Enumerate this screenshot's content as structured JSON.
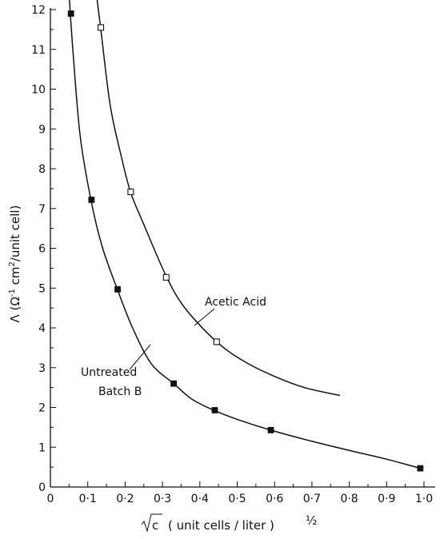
{
  "chart_data": {
    "type": "scatter",
    "xlabel": "√c (unit cells / liter)^1/2",
    "xlabel_radical": "c",
    "xlabel_text": "( unit cells / liter )",
    "xlabel_exponent": "½",
    "ylabel": "Λ (Ω⁻¹ cm²/unit cell)",
    "ylabel_text_a": "Λ (Ω",
    "ylabel_sup1": "-1",
    "ylabel_text_b": " cm",
    "ylabel_sup2": "2",
    "ylabel_text_c": "/unit cell)",
    "xlim": [
      0,
      1.0
    ],
    "ylim": [
      0,
      12
    ],
    "x_ticks": [
      0,
      0.1,
      0.2,
      0.3,
      0.4,
      0.5,
      0.6,
      0.7,
      0.8,
      0.9,
      1.0
    ],
    "x_tick_labels": [
      "0",
      "0·1",
      "0·2",
      "0·3",
      "0·4",
      "0·5",
      "0·6",
      "0·7",
      "0·8",
      "0·9",
      "1·0"
    ],
    "y_ticks": [
      0,
      1,
      2,
      3,
      4,
      5,
      6,
      7,
      8,
      9,
      10,
      11,
      12
    ],
    "y_tick_labels": [
      "0",
      "1",
      "2",
      "3",
      "4",
      "5",
      "6",
      "7",
      "8",
      "9",
      "10",
      "11",
      "12"
    ],
    "grid": false,
    "series": [
      {
        "name": "Untreated Batch B",
        "marker": "filled-square",
        "x": [
          0.055,
          0.11,
          0.18,
          0.33,
          0.44,
          0.59,
          0.99
        ],
        "y": [
          11.9,
          7.22,
          4.97,
          2.6,
          1.93,
          1.43,
          0.47
        ],
        "curve": [
          [
            0.05,
            12.4
          ],
          [
            0.06,
            11.0
          ],
          [
            0.08,
            8.8
          ],
          [
            0.11,
            7.15
          ],
          [
            0.14,
            6.0
          ],
          [
            0.18,
            4.95
          ],
          [
            0.22,
            4.0
          ],
          [
            0.27,
            3.1
          ],
          [
            0.33,
            2.6
          ],
          [
            0.38,
            2.2
          ],
          [
            0.44,
            1.92
          ],
          [
            0.5,
            1.7
          ],
          [
            0.59,
            1.43
          ],
          [
            0.7,
            1.15
          ],
          [
            0.8,
            0.92
          ],
          [
            0.9,
            0.7
          ],
          [
            0.99,
            0.47
          ]
        ]
      },
      {
        "name": "Acetic Acid",
        "marker": "open-square",
        "x": [
          0.135,
          0.215,
          0.31,
          0.445
        ],
        "y": [
          11.55,
          7.42,
          5.27,
          3.65
        ],
        "curve": [
          [
            0.123,
            12.4
          ],
          [
            0.135,
            11.5
          ],
          [
            0.16,
            9.6
          ],
          [
            0.19,
            8.3
          ],
          [
            0.215,
            7.4
          ],
          [
            0.25,
            6.6
          ],
          [
            0.31,
            5.3
          ],
          [
            0.36,
            4.5
          ],
          [
            0.445,
            3.65
          ],
          [
            0.52,
            3.15
          ],
          [
            0.6,
            2.78
          ],
          [
            0.68,
            2.5
          ],
          [
            0.775,
            2.3
          ]
        ]
      }
    ],
    "annotations": [
      {
        "lines": [
          "Acetic Acid"
        ]
      },
      {
        "lines": [
          "Untreated",
          "Batch B"
        ]
      }
    ]
  }
}
